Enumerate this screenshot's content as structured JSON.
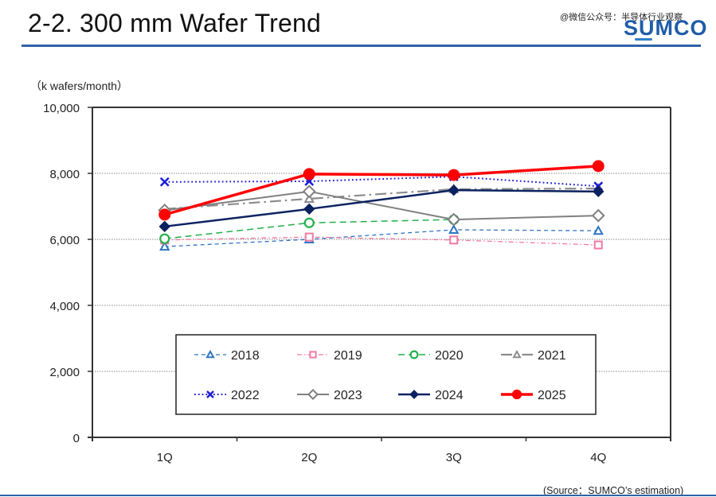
{
  "page": {
    "title": "2-2. 300 mm Wafer Trend",
    "watermark": "@微信公众号：半导体行业观察",
    "logo": "SUMCO",
    "source": "(Source：SUMCO’s estimation)"
  },
  "colors": {
    "title_rule": "#2e63a8",
    "logo": "#1f5ca8"
  },
  "chart_data": {
    "type": "line",
    "title": "",
    "ylabel": "（k wafers/month）",
    "xlabel": "",
    "categories": [
      "1Q",
      "2Q",
      "3Q",
      "4Q"
    ],
    "ylim": [
      0,
      10000
    ],
    "yticks": [
      0,
      2000,
      4000,
      6000,
      8000,
      10000
    ],
    "ytick_labels": [
      "0",
      "2,000",
      "4,000",
      "6,000",
      "8,000",
      "10,000"
    ],
    "grid": "horizontal-dotted",
    "legend_position": "bottom-center-inside",
    "series": [
      {
        "name": "2018",
        "color": "#2e75c4",
        "dash": "dashed",
        "marker": "triangle-open",
        "width": 1.3,
        "values": [
          5780,
          6000,
          6290,
          6260
        ]
      },
      {
        "name": "2019",
        "color": "#f07aa0",
        "dash": "dash-dot",
        "marker": "square-open",
        "width": 1.3,
        "values": [
          5980,
          6070,
          5980,
          5830
        ]
      },
      {
        "name": "2020",
        "color": "#22b04b",
        "dash": "long-dash",
        "marker": "circle-open",
        "width": 1.5,
        "values": [
          6020,
          6500,
          6600,
          null
        ]
      },
      {
        "name": "2021",
        "color": "#8c8c8c",
        "dash": "long-dash-dot",
        "marker": "triangle-open",
        "width": 2.2,
        "values": [
          6920,
          7230,
          7520,
          7540
        ]
      },
      {
        "name": "2022",
        "color": "#1d1dd6",
        "dash": "dotted",
        "marker": "x",
        "width": 2,
        "values": [
          7740,
          7760,
          7900,
          7610
        ]
      },
      {
        "name": "2023",
        "color": "#808080",
        "dash": "solid",
        "marker": "diamond-open",
        "width": 2,
        "values": [
          6880,
          7450,
          6600,
          6720
        ]
      },
      {
        "name": "2024",
        "color": "#0c2260",
        "dash": "solid",
        "marker": "diamond",
        "width": 2.5,
        "values": [
          6390,
          6920,
          7490,
          7450
        ]
      },
      {
        "name": "2025",
        "color": "#ff0000",
        "dash": "solid",
        "marker": "circle",
        "width": 3.5,
        "values": [
          6750,
          7980,
          7950,
          8220
        ]
      }
    ]
  }
}
